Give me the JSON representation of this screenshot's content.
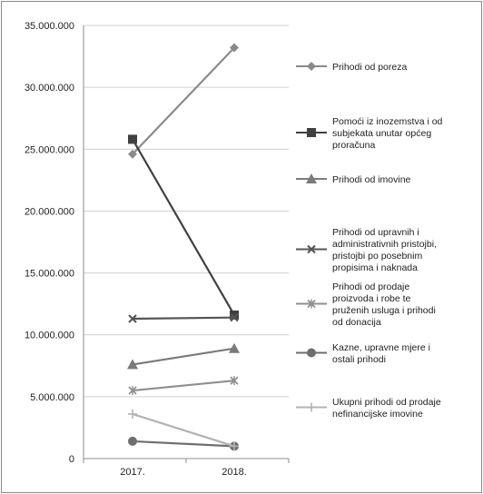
{
  "chart_data": {
    "type": "line",
    "title": "",
    "xlabel": "",
    "ylabel": "",
    "categories": [
      "2017.",
      "2018."
    ],
    "ylim": [
      0,
      35000000
    ],
    "yticks": [
      0,
      5000000,
      10000000,
      15000000,
      20000000,
      25000000,
      30000000,
      35000000
    ],
    "ytick_labels": [
      "0",
      "5.000.000",
      "10.000.000",
      "15.000.000",
      "20.000.000",
      "25.000.000",
      "30.000.000",
      "35.000.000"
    ],
    "grid": true,
    "legend_position": "right",
    "series": [
      {
        "name": "Prihodi od poreza",
        "values": [
          24600000,
          33200000
        ],
        "color": "#8a8a8a",
        "marker": "diamond"
      },
      {
        "name": "Pomoći iz inozemstva i od subjekata unutar općeg proračuna",
        "values": [
          25800000,
          11600000
        ],
        "color": "#404040",
        "marker": "square"
      },
      {
        "name": "Prihodi od imovine",
        "values": [
          7600000,
          8900000
        ],
        "color": "#7a7a7a",
        "marker": "triangle"
      },
      {
        "name": "Prihodi od upravnih i administrativnih pristojbi, pristojbi po posebnim propisima i naknada",
        "values": [
          11300000,
          11400000
        ],
        "color": "#555555",
        "marker": "x"
      },
      {
        "name": "Prihodi od prodaje proizvoda i robe te pruženih usluga i prihodi od donacija",
        "values": [
          5500000,
          6300000
        ],
        "color": "#8f8f8f",
        "marker": "star"
      },
      {
        "name": "Kazne, upravne mjere i ostali prihodi",
        "values": [
          1400000,
          1000000
        ],
        "color": "#6e6e6e",
        "marker": "circle"
      },
      {
        "name": "Ukupni prihodi od prodaje nefinancijske imovine",
        "values": [
          3600000,
          1000000
        ],
        "color": "#b3b3b3",
        "marker": "plus"
      }
    ],
    "legend_lines": [
      [
        "Prihodi od poreza"
      ],
      [
        "Pomoći iz inozemstva i od",
        "subjekata unutar općeg",
        "proračuna"
      ],
      [
        "Prihodi od imovine"
      ],
      [
        "Prihodi od upravnih i",
        "administrativnih pristojbi,",
        "pristojbi po posebnim",
        "propisima i naknada"
      ],
      [
        "Prihodi od prodaje",
        "proizvoda i robe te",
        "pruženih usluga i prihodi",
        "od donacija"
      ],
      [
        "Kazne, upravne mjere i",
        "ostali prihodi"
      ],
      [
        "Ukupni prihodi od prodaje",
        "nefinancijske imovine"
      ]
    ]
  }
}
